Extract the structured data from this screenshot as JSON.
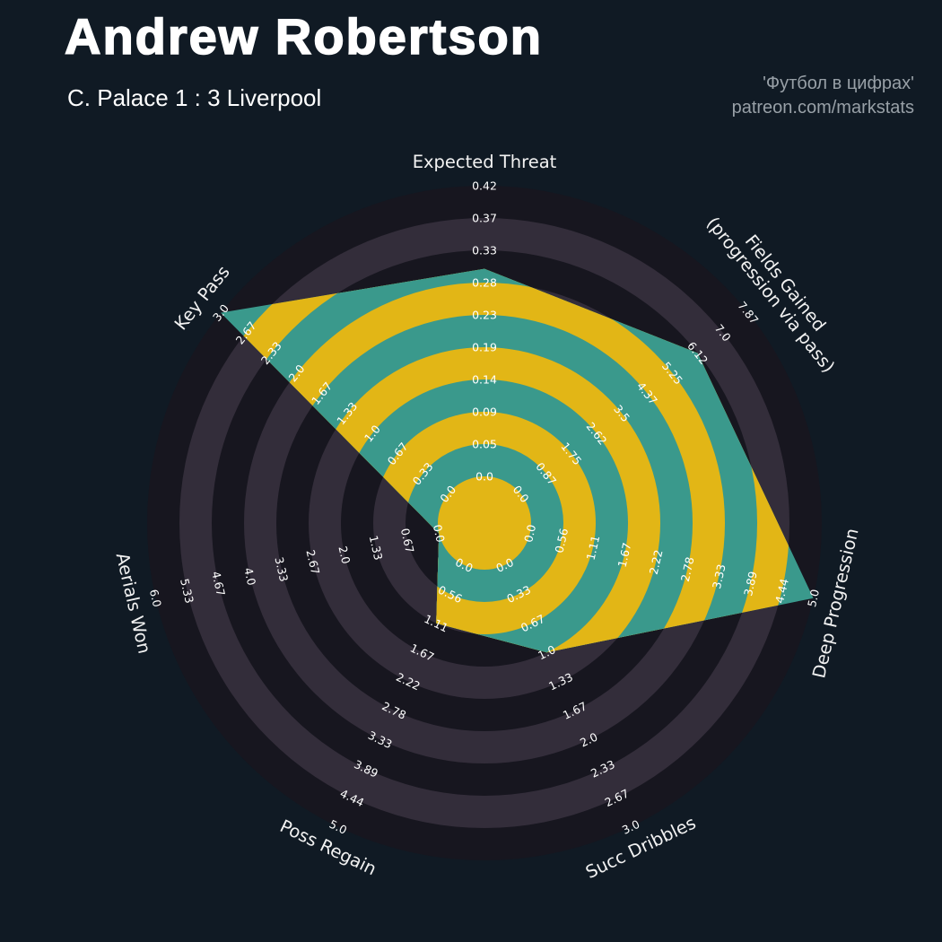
{
  "header": {
    "title": "Andrew Robertson",
    "subtitle": "C. Palace 1 : 3 Liverpool",
    "credit_line1": "'Футбол в цифрах'",
    "credit_line2": "patreon.com/markstats"
  },
  "colors": {
    "background": "#101a24",
    "ring_dark": "#17161f",
    "ring_light": "#332d3a",
    "slice_teal": "#3a998c",
    "slice_gold": "#e2b616",
    "tick_text": "#ffffff",
    "axis_text": "#f2f2f2",
    "title_text": "#ffffff",
    "credit_text": "#98a0a7"
  },
  "chart_data": {
    "type": "radar",
    "style": "pizza-chart, concentric alternating rings, polygon clipped to ring pattern",
    "rings": 9,
    "axes": [
      {
        "label": "Expected Threat",
        "label_lines": [
          "Expected Threat"
        ],
        "max": 0.42,
        "value": 0.3,
        "ticks": [
          "0.0",
          "0.05",
          "0.09",
          "0.14",
          "0.19",
          "0.23",
          "0.28",
          "0.33",
          "0.37",
          "0.42"
        ]
      },
      {
        "label": "Fields Gained (progression via pass)",
        "label_lines": [
          "Fields Gained",
          "(progression via pass)"
        ],
        "max": 7.87,
        "value": 6.12,
        "ticks": [
          "0.0",
          "0.87",
          "1.75",
          "2.62",
          "3.5",
          "4.37",
          "5.25",
          "6.12",
          "7.0",
          "7.87"
        ]
      },
      {
        "label": "Deep Progression",
        "label_lines": [
          "Deep Progression"
        ],
        "max": 5.0,
        "value": 5.0,
        "ticks": [
          "0.0",
          "0.56",
          "1.11",
          "1.67",
          "2.22",
          "2.78",
          "3.33",
          "3.89",
          "4.44",
          "5.0"
        ]
      },
      {
        "label": "Succ Dribbles",
        "label_lines": [
          "Succ Dribbles"
        ],
        "max": 3.0,
        "value": 1.0,
        "ticks": [
          "0.0",
          "0.33",
          "0.67",
          "1.0",
          "1.33",
          "1.67",
          "2.0",
          "2.33",
          "2.67",
          "3.0"
        ]
      },
      {
        "label": "Poss Regain",
        "label_lines": [
          "Poss Regain"
        ],
        "max": 5.0,
        "value": 1.11,
        "ticks": [
          "0.0",
          "0.56",
          "1.11",
          "1.67",
          "2.22",
          "2.78",
          "3.33",
          "3.89",
          "4.44",
          "5.0"
        ]
      },
      {
        "label": "Aerials Won",
        "label_lines": [
          "Aerials Won"
        ],
        "max": 6.0,
        "value": 0.0,
        "ticks": [
          "0.0",
          "0.67",
          "1.33",
          "2.0",
          "2.67",
          "3.33",
          "4.0",
          "4.67",
          "5.33",
          "6.0"
        ]
      },
      {
        "label": "Key Pass",
        "label_lines": [
          "Key Pass"
        ],
        "max": 3.0,
        "value": 3.0,
        "ticks": [
          "0.0",
          "0.33",
          "0.67",
          "1.0",
          "1.33",
          "1.67",
          "2.0",
          "2.33",
          "2.67",
          "3.0"
        ]
      }
    ]
  }
}
